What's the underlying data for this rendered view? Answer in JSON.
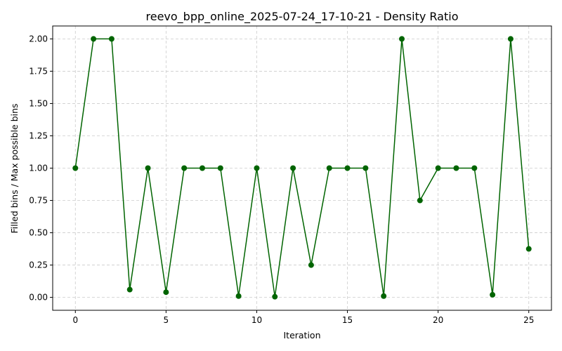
{
  "chart_data": {
    "type": "line",
    "title": "reevo_bpp_online_2025-07-24_17-10-21 - Density Ratio",
    "xlabel": "Iteration",
    "ylabel": "Filled bins / Max possible bins",
    "xlim": [
      -1.25,
      26.25
    ],
    "ylim": [
      -0.1,
      2.1
    ],
    "xticks": [
      0,
      5,
      10,
      15,
      20,
      25
    ],
    "xtick_labels": [
      "0",
      "5",
      "10",
      "15",
      "20",
      "25"
    ],
    "yticks": [
      0,
      0.25,
      0.5,
      0.75,
      1.0,
      1.25,
      1.5,
      1.75,
      2.0
    ],
    "ytick_labels": [
      "0.00",
      "0.25",
      "0.50",
      "0.75",
      "1.00",
      "1.25",
      "1.50",
      "1.75",
      "2.00"
    ],
    "grid": true,
    "series": [
      {
        "color": "#006400",
        "marker": "circle",
        "x": [
          0,
          1,
          2,
          3,
          4,
          5,
          6,
          7,
          8,
          9,
          10,
          11,
          12,
          13,
          14,
          15,
          16,
          17,
          18,
          19,
          20,
          21,
          22,
          23,
          24,
          25
        ],
        "y": [
          1.0,
          2.0,
          2.0,
          0.06,
          1.0,
          0.04,
          1.0,
          1.0,
          1.0,
          0.01,
          1.0,
          0.005,
          1.0,
          0.25,
          1.0,
          1.0,
          1.0,
          0.01,
          2.0,
          0.75,
          1.0,
          1.0,
          1.0,
          0.02,
          2.0,
          0.375
        ]
      }
    ]
  }
}
